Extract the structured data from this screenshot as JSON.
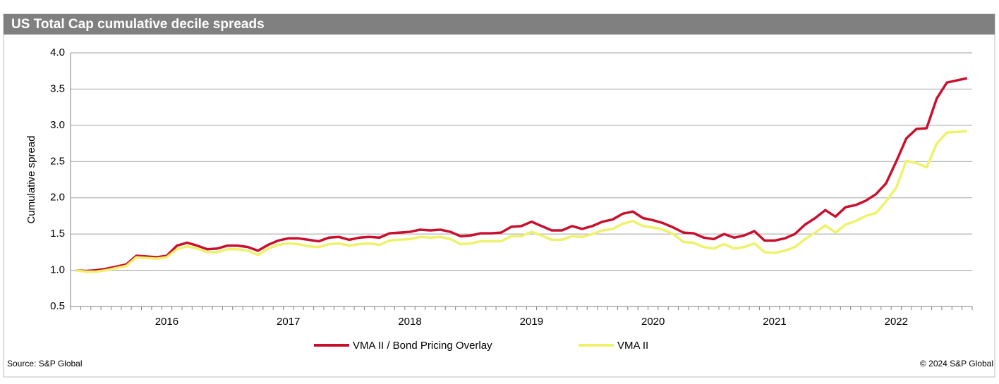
{
  "chart_data": {
    "type": "line",
    "title": "US Total Cap cumulative decile spreads",
    "ylabel": "Cumulative spread",
    "source": "Source: S&P Global",
    "copyright": "© 2024 S&P Global",
    "categories": [
      null,
      null,
      null,
      null,
      null,
      null,
      null,
      null,
      null,
      "2016",
      null,
      null,
      null,
      null,
      null,
      null,
      null,
      null,
      null,
      null,
      null,
      "2017",
      null,
      null,
      null,
      null,
      null,
      null,
      null,
      null,
      null,
      null,
      null,
      "2018",
      null,
      null,
      null,
      null,
      null,
      null,
      null,
      null,
      null,
      null,
      null,
      "2019",
      null,
      null,
      null,
      null,
      null,
      null,
      null,
      null,
      null,
      null,
      null,
      "2020",
      null,
      null,
      null,
      null,
      null,
      null,
      null,
      null,
      null,
      null,
      null,
      "2021",
      null,
      null,
      null,
      null,
      null,
      null,
      null,
      null,
      null,
      null,
      null,
      "2022",
      null,
      null,
      null,
      null,
      null,
      null,
      null
    ],
    "series": [
      {
        "name": "VMA II / Bond Pricing Overlay",
        "color": "#c8102e",
        "values": [
          1.0,
          0.99,
          1.0,
          1.02,
          1.05,
          1.08,
          1.2,
          1.19,
          1.18,
          1.2,
          1.34,
          1.38,
          1.34,
          1.29,
          1.3,
          1.34,
          1.34,
          1.32,
          1.27,
          1.35,
          1.41,
          1.44,
          1.44,
          1.42,
          1.4,
          1.45,
          1.46,
          1.42,
          1.45,
          1.46,
          1.45,
          1.51,
          1.52,
          1.53,
          1.56,
          1.55,
          1.56,
          1.53,
          1.47,
          1.48,
          1.51,
          1.51,
          1.52,
          1.6,
          1.61,
          1.67,
          1.61,
          1.55,
          1.55,
          1.61,
          1.57,
          1.61,
          1.67,
          1.7,
          1.78,
          1.81,
          1.72,
          1.69,
          1.65,
          1.59,
          1.52,
          1.51,
          1.45,
          1.43,
          1.5,
          1.45,
          1.48,
          1.54,
          1.41,
          1.41,
          1.44,
          1.5,
          1.63,
          1.72,
          1.83,
          1.74,
          1.87,
          1.9,
          1.96,
          2.05,
          2.2,
          2.5,
          2.82,
          2.95,
          2.96,
          3.37,
          3.59,
          3.62,
          3.65
        ]
      },
      {
        "name": "VMA II",
        "color": "#eef26a",
        "values": [
          1.0,
          0.98,
          0.98,
          1.0,
          1.03,
          1.06,
          1.18,
          1.17,
          1.16,
          1.18,
          1.29,
          1.33,
          1.3,
          1.25,
          1.25,
          1.29,
          1.29,
          1.27,
          1.21,
          1.3,
          1.35,
          1.37,
          1.36,
          1.33,
          1.32,
          1.36,
          1.37,
          1.34,
          1.36,
          1.37,
          1.35,
          1.41,
          1.42,
          1.43,
          1.46,
          1.45,
          1.46,
          1.43,
          1.36,
          1.37,
          1.4,
          1.4,
          1.4,
          1.47,
          1.47,
          1.53,
          1.48,
          1.42,
          1.42,
          1.47,
          1.46,
          1.5,
          1.55,
          1.57,
          1.64,
          1.68,
          1.61,
          1.59,
          1.56,
          1.5,
          1.39,
          1.38,
          1.32,
          1.3,
          1.36,
          1.3,
          1.32,
          1.37,
          1.25,
          1.24,
          1.27,
          1.32,
          1.43,
          1.52,
          1.62,
          1.52,
          1.63,
          1.68,
          1.75,
          1.79,
          1.95,
          2.14,
          2.51,
          2.48,
          2.42,
          2.75,
          2.9,
          2.91,
          2.92
        ]
      }
    ],
    "ylim": [
      0.5,
      4.0
    ],
    "yticks": [
      0.5,
      {
        "value": 1,
        "label": "1.0"
      },
      1.5,
      {
        "value": 2,
        "label": "2.0"
      },
      2.5,
      {
        "value": 3,
        "label": "3.0"
      },
      3.5,
      {
        "value": 4,
        "label": "4.0"
      }
    ],
    "grid": true
  }
}
